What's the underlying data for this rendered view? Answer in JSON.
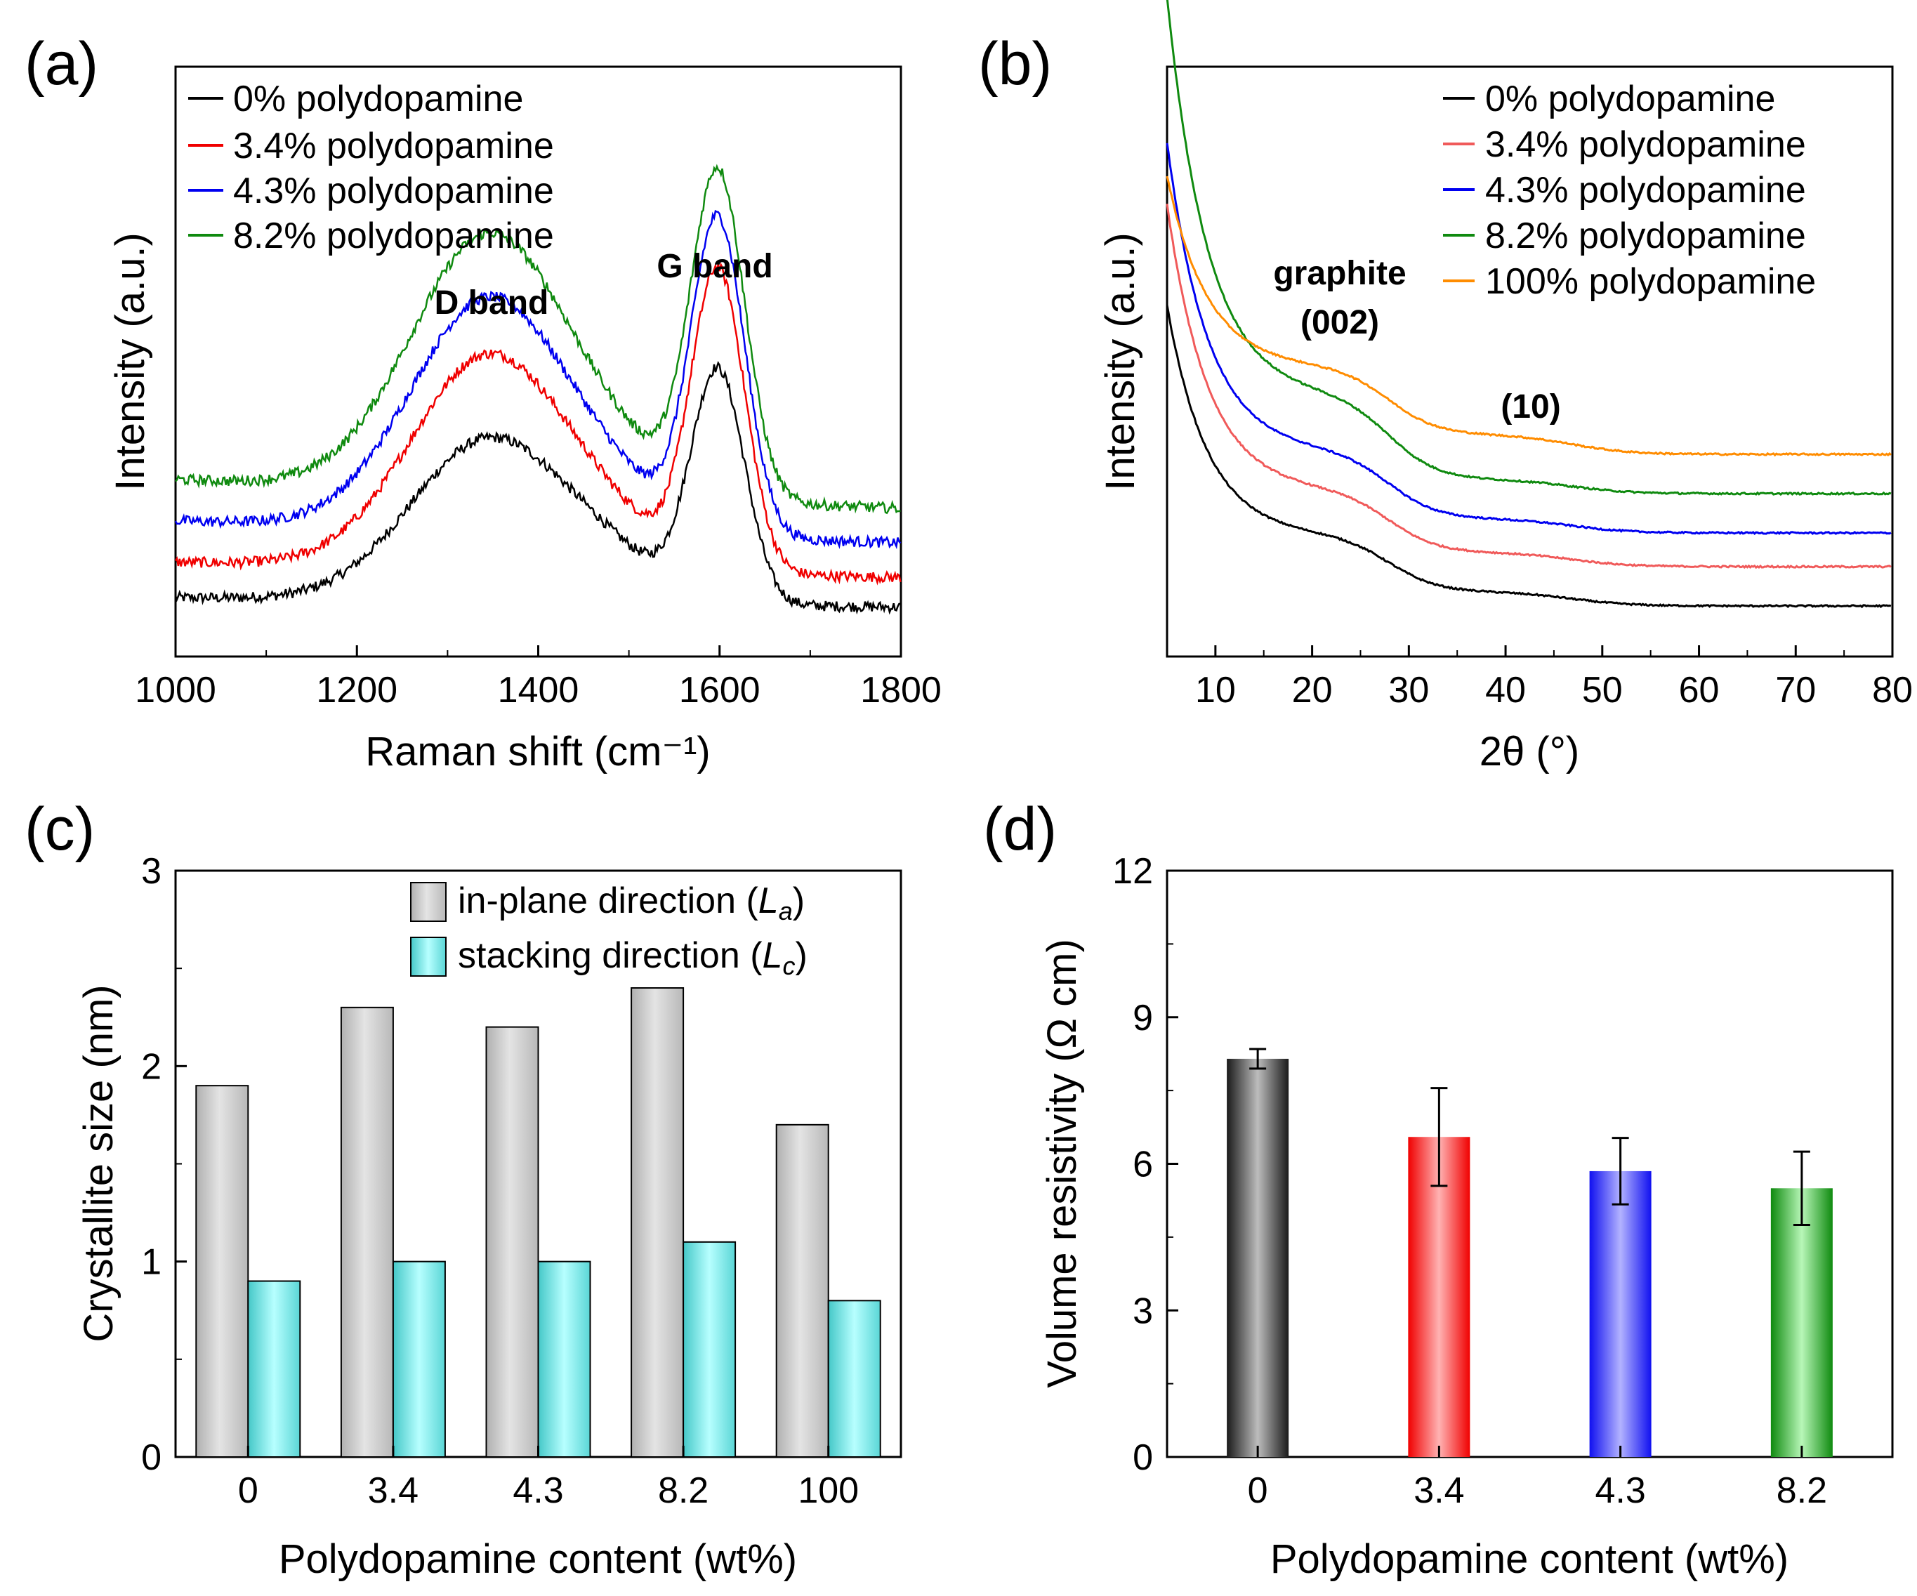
{
  "panel_labels": [
    "(a)",
    "(b)",
    "(c)",
    "(d)"
  ],
  "colors": {
    "black": "#000000",
    "red": "#f00000",
    "blue": "#0000f0",
    "green": "#0f8a0f",
    "pink": "#f05a5a",
    "orange": "#ff8c00",
    "gray": "#c8c8c8",
    "cyan": "#9cf4f4"
  },
  "chart_data": [
    {
      "panel": "(a)",
      "type": "line",
      "xlabel": "Raman shift (cm⁻¹)",
      "ylabel": "Intensity (a.u.)",
      "xlim": [
        1000,
        1800
      ],
      "xticks": [
        1000,
        1200,
        1400,
        1600,
        1800
      ],
      "yticks_shown": false,
      "annotations": [
        "D band",
        "G band"
      ],
      "legend_position": "top-left",
      "series": [
        {
          "name": "0% polydopamine",
          "color": "#000000",
          "baseline": 0.1,
          "d_height": 0.44,
          "g_height": 0.6
        },
        {
          "name": "3.4% polydopamine",
          "color": "#f00000",
          "baseline": 0.16,
          "d_height": 0.58,
          "g_height": 0.78
        },
        {
          "name": "4.3% polydopamine",
          "color": "#0000f0",
          "baseline": 0.23,
          "d_height": 0.63,
          "g_height": 0.82
        },
        {
          "name": "8.2% polydopamine",
          "color": "#0f8a0f",
          "baseline": 0.3,
          "d_height": 0.7,
          "g_height": 0.85
        }
      ]
    },
    {
      "panel": "(b)",
      "type": "line",
      "xlabel": "2θ (°)",
      "ylabel": "Intensity (a.u.)",
      "xlim": [
        5,
        80
      ],
      "xticks": [
        10,
        20,
        30,
        40,
        50,
        60,
        70,
        80
      ],
      "yticks_shown": false,
      "annotations": [
        "graphite",
        "(002)",
        "(10)"
      ],
      "legend_position": "top-right",
      "series": [
        {
          "name": "0% polydopamine",
          "color": "#000000",
          "plateau": 0.09,
          "start": 0.5,
          "hump002": 0.1,
          "hump10": 0.025
        },
        {
          "name": "3.4% polydopamine",
          "color": "#f05a5a",
          "plateau": 0.16,
          "start": 0.67,
          "hump002": 0.11,
          "hump10": 0.025
        },
        {
          "name": "4.3% polydopamine",
          "color": "#0000f0",
          "plateau": 0.22,
          "start": 0.77,
          "hump002": 0.12,
          "hump10": 0.025
        },
        {
          "name": "8.2% polydopamine",
          "color": "#0f8a0f",
          "plateau": 0.29,
          "start": 1.0,
          "hump002": 0.15,
          "hump10": 0.025
        },
        {
          "name": "100% polydopamine",
          "color": "#ff8c00",
          "plateau": 0.36,
          "start": 0.7,
          "hump002": 0.12,
          "hump10": 0.035
        }
      ]
    },
    {
      "panel": "(c)",
      "type": "bar",
      "xlabel": "Polydopamine content (wt%)",
      "ylabel": "Crystallite size (nm)",
      "ylim": [
        0,
        3
      ],
      "yticks": [
        0,
        1,
        2,
        3
      ],
      "categories": [
        "0",
        "3.4",
        "4.3",
        "8.2",
        "100"
      ],
      "legend_position": "top-right",
      "series": [
        {
          "name": "in-plane direction (",
          "symbol": "L",
          "subscript": "a",
          "suffix": ")",
          "color": "#c8c8c8",
          "values": [
            1.9,
            2.3,
            2.2,
            2.4,
            1.7
          ]
        },
        {
          "name": "stacking direction (",
          "symbol": "L",
          "subscript": "c",
          "suffix": ")",
          "color": "#9cf4f4",
          "values": [
            0.9,
            1.0,
            1.0,
            1.1,
            0.8
          ]
        }
      ]
    },
    {
      "panel": "(d)",
      "type": "bar",
      "xlabel": "Polydopamine content (wt%)",
      "ylabel": "Volume resistivity (Ω cm)",
      "ylim": [
        0,
        12
      ],
      "yticks": [
        0,
        3,
        6,
        9,
        12
      ],
      "categories": [
        "0",
        "3.4",
        "4.3",
        "8.2"
      ],
      "values": [
        8.15,
        6.55,
        5.85,
        5.5
      ],
      "errors": [
        0.2,
        1.0,
        0.68,
        0.75
      ],
      "bar_colors": [
        "#000000",
        "#f00000",
        "#0000f0",
        "#0f8a0f"
      ]
    }
  ]
}
